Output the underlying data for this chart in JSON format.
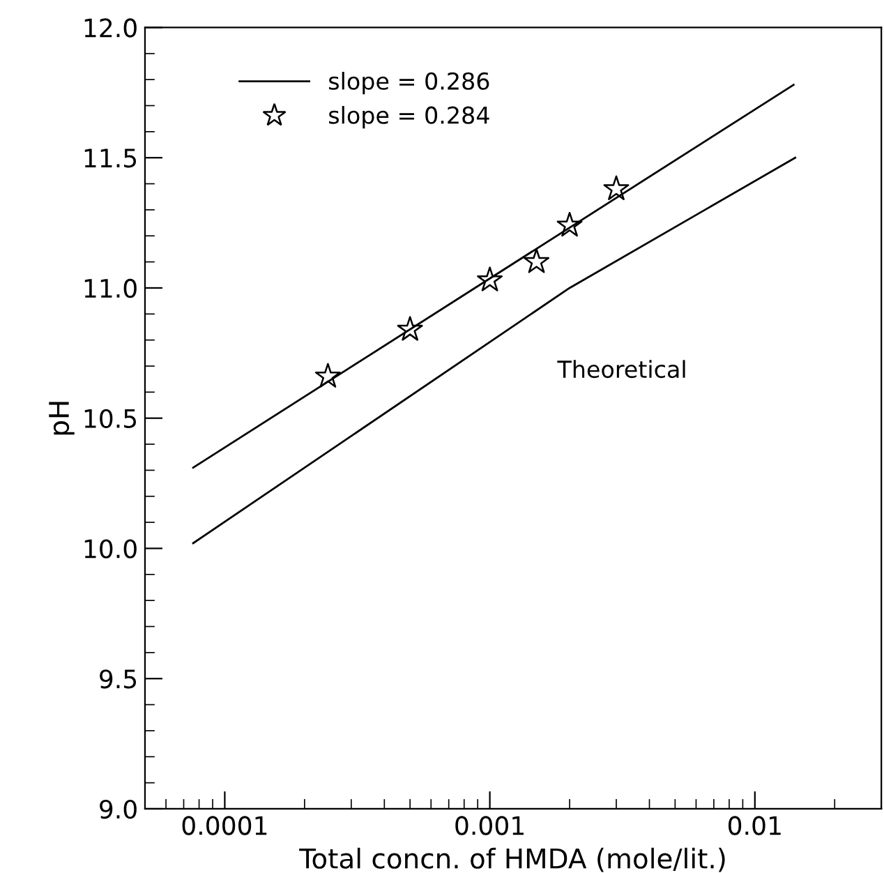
{
  "chart_data": {
    "type": "line",
    "xlabel": "Total concn. of HMDA (mole/lit.)",
    "ylabel": "pH",
    "log": "x",
    "xlim": [
      5e-05,
      0.03
    ],
    "xticks": [
      0.0001,
      0.001,
      0.01
    ],
    "ylim": [
      9.0,
      12.0
    ],
    "yticks": [
      {
        "value": 9.0,
        "label": "9.0"
      },
      {
        "value": 9.5,
        "label": "9.5"
      },
      {
        "value": 10.0,
        "label": "10.0"
      },
      {
        "value": 10.5,
        "label": "10.5"
      },
      {
        "value": 11.0,
        "label": "11.0"
      },
      {
        "value": 11.5,
        "label": "11.5"
      },
      {
        "value": 12.0,
        "label": "12.0"
      }
    ],
    "legend": "top left",
    "series": [
      {
        "name": "slope = 0.286",
        "color": "#000000",
        "marker": "none",
        "line_style": "solid",
        "x": [
          7.6e-05,
          0.014
        ],
        "values": [
          10.31,
          11.78
        ]
      },
      {
        "name": "slope = 0.284",
        "type": "scatter",
        "color": "#000000",
        "marker": "star",
        "x": [
          0.000245,
          0.0005,
          0.001,
          0.0015,
          0.002,
          0.003
        ],
        "values": [
          10.66,
          10.84,
          11.03,
          11.1,
          11.24,
          11.38
        ]
      },
      {
        "color": "#000000",
        "marker": "none",
        "line_style": "solid",
        "x": [
          7.6e-05,
          0.002,
          0.0142
        ],
        "values": [
          10.02,
          11.0,
          11.5
        ]
      }
    ],
    "annotations": [
      "Theoretical"
    ]
  }
}
